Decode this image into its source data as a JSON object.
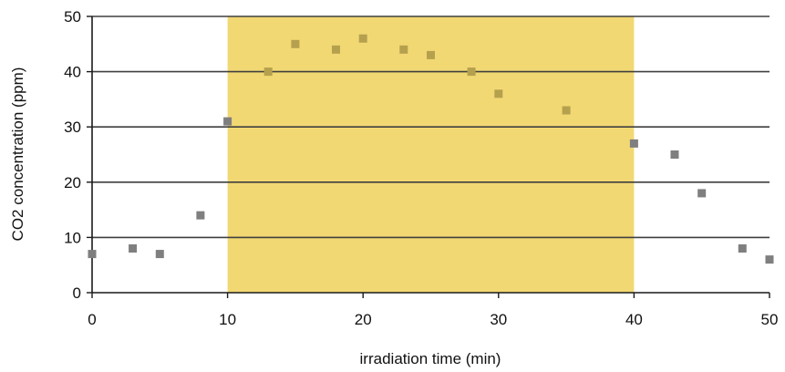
{
  "chart_data": {
    "type": "scatter",
    "title": "",
    "xlabel": "irradiation time (min)",
    "ylabel": "CO2 concentration (ppm)",
    "xlim": [
      0,
      50
    ],
    "ylim": [
      0,
      50
    ],
    "xticks": [
      0,
      10,
      20,
      30,
      40,
      50
    ],
    "yticks": [
      0,
      10,
      20,
      30,
      40,
      50
    ],
    "grid": "horizontal",
    "highlight_band": {
      "from": 10,
      "to": 40
    },
    "series": [
      {
        "x": [
          0,
          3,
          5,
          8,
          10,
          13,
          15,
          18,
          20,
          23,
          25,
          28,
          30,
          35,
          40,
          43,
          45,
          48,
          50
        ],
        "y": [
          7,
          8,
          7,
          14,
          31,
          40,
          45,
          44,
          46,
          44,
          43,
          40,
          36,
          33,
          27,
          25,
          18,
          8,
          6
        ]
      }
    ]
  },
  "colors": {
    "band": "#f2d873",
    "marker_outside": "#7f7f7f",
    "marker_inside": "#b5a04e",
    "gridline": "#3f3f3f",
    "axis": "#1a1a1a"
  }
}
